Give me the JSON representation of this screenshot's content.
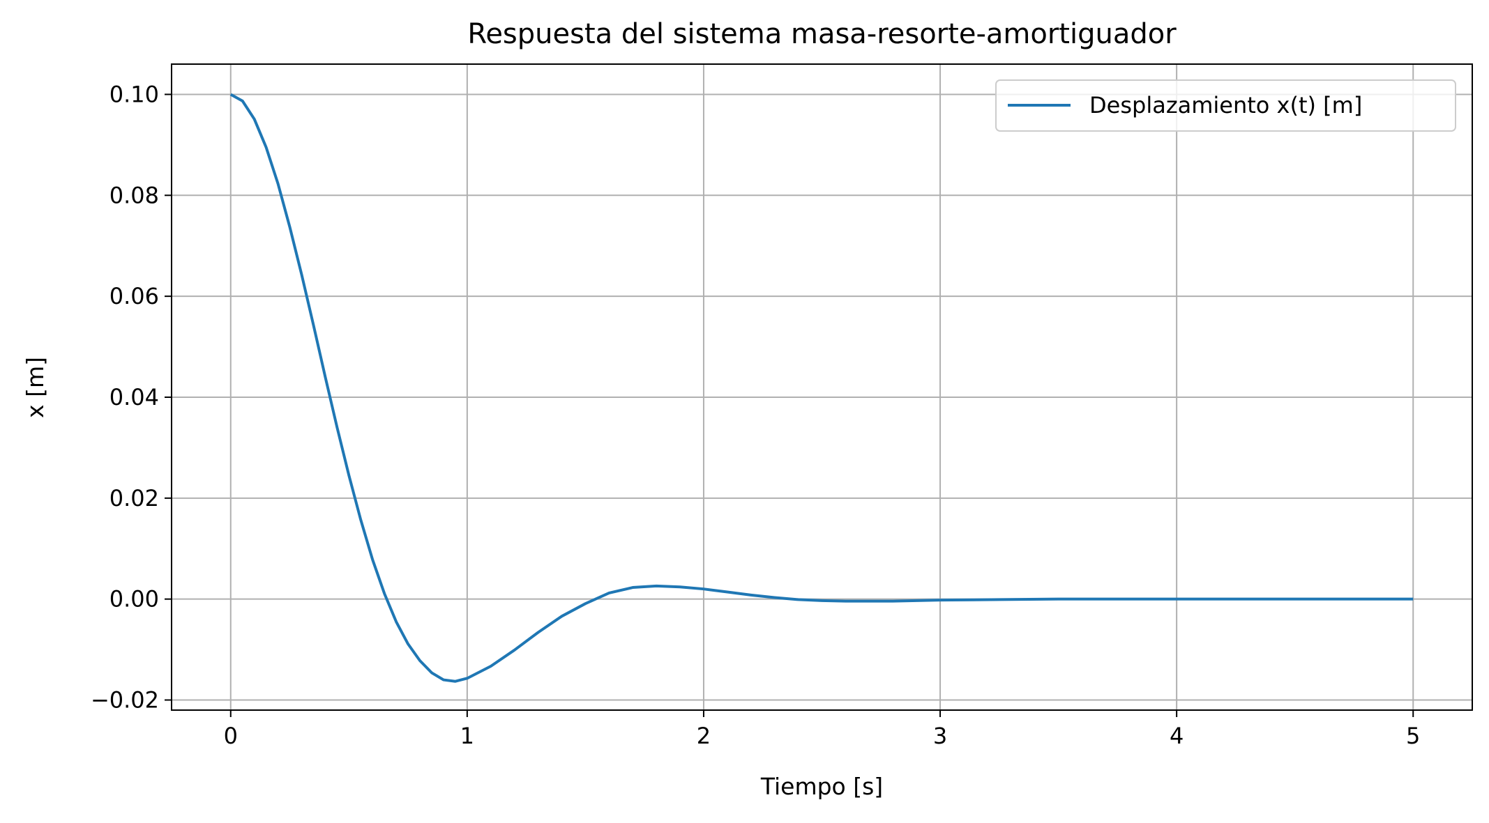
{
  "colors": {
    "series_line": "#1f77b4",
    "grid": "#b0b0b0",
    "axes": "#000000",
    "background": "#ffffff"
  },
  "chart_data": {
    "type": "line",
    "title": "Respuesta del sistema masa-resorte-amortiguador",
    "xlabel": "Tiempo [s]",
    "ylabel": "x [m]",
    "xlim": [
      -0.25,
      5.25
    ],
    "ylim": [
      -0.022,
      0.106
    ],
    "grid": true,
    "legend_position": "top-right",
    "x_ticks": [
      0,
      1,
      2,
      3,
      4,
      5
    ],
    "x_tick_labels": [
      "0",
      "1",
      "2",
      "3",
      "4",
      "5"
    ],
    "y_ticks": [
      -0.02,
      0.0,
      0.02,
      0.04,
      0.06,
      0.08,
      0.1
    ],
    "y_tick_labels": [
      "−0.02",
      "0.00",
      "0.02",
      "0.04",
      "0.06",
      "0.08",
      "0.10"
    ],
    "series": [
      {
        "name": "Desplazamiento x(t) [m]",
        "x": [
          0,
          0.05,
          0.1,
          0.15,
          0.2,
          0.25,
          0.3,
          0.35,
          0.4,
          0.45,
          0.5,
          0.55,
          0.6,
          0.65,
          0.7,
          0.75,
          0.8,
          0.85,
          0.9,
          0.95,
          1.0,
          1.1,
          1.2,
          1.3,
          1.4,
          1.5,
          1.6,
          1.7,
          1.8,
          1.9,
          2.0,
          2.1,
          2.2,
          2.3,
          2.4,
          2.5,
          2.6,
          2.7,
          2.8,
          2.9,
          3.0,
          3.25,
          3.5,
          3.75,
          4.0,
          4.25,
          4.5,
          4.75,
          5.0
        ],
        "values": [
          0.1,
          0.0987,
          0.0951,
          0.0895,
          0.0823,
          0.0737,
          0.0643,
          0.0543,
          0.044,
          0.034,
          0.0245,
          0.0157,
          0.0078,
          0.0011,
          -0.0045,
          -0.0089,
          -0.0122,
          -0.0146,
          -0.016,
          -0.0163,
          -0.0157,
          -0.0133,
          -0.0101,
          -0.0066,
          -0.0034,
          -0.0009,
          0.0012,
          0.0023,
          0.0026,
          0.0024,
          0.002,
          0.0014,
          0.0008,
          0.0003,
          -0.0001,
          -0.0003,
          -0.0004,
          -0.0004,
          -0.0004,
          -0.0003,
          -0.0002,
          -0.0001,
          0.0,
          0.0,
          0.0,
          0.0,
          0.0,
          0.0,
          0.0
        ]
      }
    ]
  }
}
